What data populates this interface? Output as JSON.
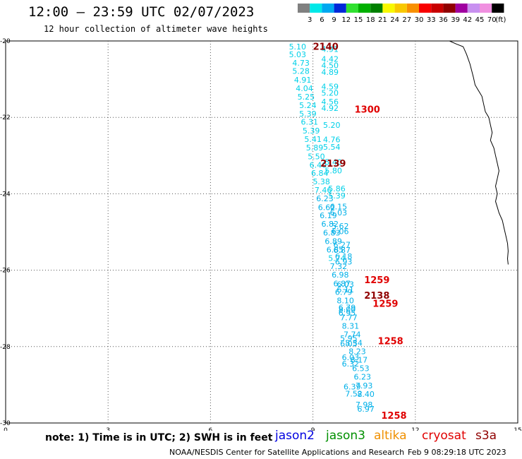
{
  "title": "12:00 – 23:59 UTC 02/07/2023",
  "subtitle": "12 hour collection of altimeter wave heights",
  "colorbar": {
    "unit": "(ft)",
    "bins": [
      {
        "label": "3",
        "color": "#808080"
      },
      {
        "label": "6",
        "color": "#00e8e8"
      },
      {
        "label": "9",
        "color": "#00a8f0"
      },
      {
        "label": "12",
        "color": "#0028d8"
      },
      {
        "label": "15",
        "color": "#30e030"
      },
      {
        "label": "18",
        "color": "#00b000"
      },
      {
        "label": "21",
        "color": "#008000"
      },
      {
        "label": "24",
        "color": "#f8f800"
      },
      {
        "label": "27",
        "color": "#f8c800"
      },
      {
        "label": "30",
        "color": "#f89000"
      },
      {
        "label": "33",
        "color": "#f80000"
      },
      {
        "label": "36",
        "color": "#c80000"
      },
      {
        "label": "39",
        "color": "#900000"
      },
      {
        "label": "42",
        "color": "#a000a0"
      },
      {
        "label": "45",
        "color": "#c890f0"
      },
      {
        "label": "70",
        "color": "#f090e0"
      },
      {
        "label": "",
        "color": "#000000"
      }
    ]
  },
  "note": "note: 1) Time is in UTC; 2) SWH is in feet",
  "legend": [
    {
      "label": "jason2",
      "color": "#0000e0"
    },
    {
      "label": "jason3",
      "color": "#009000"
    },
    {
      "label": "altika",
      "color": "#f09000"
    },
    {
      "label": "cryosat",
      "color": "#e00000"
    },
    {
      "label": "s3a",
      "color": "#900000"
    }
  ],
  "credit": "NOAA/NESDIS Center for Satellite Applications and Research",
  "timestamp": "Feb  9 08:29:18 UTC 2023",
  "chart_data": {
    "type": "scatter",
    "xlim": [
      0,
      15
    ],
    "ylim": [
      -30,
      -20
    ],
    "xticks": [
      "0",
      "3",
      "6",
      "9",
      "12",
      "15"
    ],
    "yticks": [
      "-20",
      "-22",
      "-24",
      "-26",
      "-28",
      "-30"
    ],
    "grid": true,
    "swh_labels": [
      {
        "x": 8.55,
        "y": -20.15,
        "text": "5.10",
        "color": "#00d0e8"
      },
      {
        "x": 8.55,
        "y": -20.35,
        "text": "5.03",
        "color": "#00d0e8"
      },
      {
        "x": 8.65,
        "y": -20.57,
        "text": "4.73",
        "color": "#00d0e8"
      },
      {
        "x": 8.65,
        "y": -20.79,
        "text": "5.28",
        "color": "#00d0e8"
      },
      {
        "x": 8.7,
        "y": -21.02,
        "text": "4.91",
        "color": "#00d0e8"
      },
      {
        "x": 8.75,
        "y": -21.24,
        "text": "4.04",
        "color": "#00d0e8"
      },
      {
        "x": 8.8,
        "y": -21.46,
        "text": "5.25",
        "color": "#00d0e8"
      },
      {
        "x": 8.85,
        "y": -21.68,
        "text": "5.24",
        "color": "#00d0e8"
      },
      {
        "x": 8.85,
        "y": -21.9,
        "text": "5.39",
        "color": "#00d0e8"
      },
      {
        "x": 8.9,
        "y": -22.12,
        "text": "6.31",
        "color": "#00d0e8"
      },
      {
        "x": 8.95,
        "y": -22.35,
        "text": "5.39",
        "color": "#00d0e8"
      },
      {
        "x": 9.0,
        "y": -22.57,
        "text": "5.41",
        "color": "#00d0e8"
      },
      {
        "x": 9.05,
        "y": -22.79,
        "text": "5.89",
        "color": "#00d0e8"
      },
      {
        "x": 9.1,
        "y": -23.02,
        "text": "5.50",
        "color": "#00d0e8"
      },
      {
        "x": 9.15,
        "y": -23.24,
        "text": "6.40",
        "color": "#00d0e8"
      },
      {
        "x": 9.2,
        "y": -23.46,
        "text": "6.84",
        "color": "#00d0e8"
      },
      {
        "x": 9.25,
        "y": -23.68,
        "text": "5.38",
        "color": "#00d0e8"
      },
      {
        "x": 9.3,
        "y": -23.9,
        "text": "7.46",
        "color": "#00d0e8"
      },
      {
        "x": 9.35,
        "y": -24.12,
        "text": "6.23",
        "color": "#00b0e8"
      },
      {
        "x": 9.4,
        "y": -24.35,
        "text": "6.62",
        "color": "#00b0e8"
      },
      {
        "x": 9.45,
        "y": -24.57,
        "text": "6.19",
        "color": "#00b0e8"
      },
      {
        "x": 9.5,
        "y": -24.79,
        "text": "6.82",
        "color": "#00b0e8"
      },
      {
        "x": 9.55,
        "y": -25.02,
        "text": "6.83",
        "color": "#00b0e8"
      },
      {
        "x": 9.6,
        "y": -25.24,
        "text": "6.89",
        "color": "#00b0e8"
      },
      {
        "x": 9.65,
        "y": -25.46,
        "text": "6.85",
        "color": "#00b0e8"
      },
      {
        "x": 9.7,
        "y": -25.68,
        "text": "5.74",
        "color": "#00d0e8"
      },
      {
        "x": 9.75,
        "y": -25.9,
        "text": "7.32",
        "color": "#00b0e8"
      },
      {
        "x": 9.8,
        "y": -26.12,
        "text": "6.98",
        "color": "#00b0e8"
      },
      {
        "x": 9.85,
        "y": -26.35,
        "text": "6.87",
        "color": "#00b0e8"
      },
      {
        "x": 9.9,
        "y": -26.57,
        "text": "6.79",
        "color": "#00b0e8"
      },
      {
        "x": 9.95,
        "y": -26.79,
        "text": "8.10",
        "color": "#00b0e8"
      },
      {
        "x": 10.0,
        "y": -27.02,
        "text": "8.00",
        "color": "#00b0e8"
      },
      {
        "x": 10.05,
        "y": -27.24,
        "text": "7.77",
        "color": "#00b0e8"
      },
      {
        "x": 10.1,
        "y": -27.46,
        "text": "8.31",
        "color": "#00b0e8"
      },
      {
        "x": 10.15,
        "y": -27.68,
        "text": "7.74",
        "color": "#00b0e8"
      },
      {
        "x": 10.2,
        "y": -27.9,
        "text": "8.34",
        "color": "#00b0e8"
      },
      {
        "x": 10.3,
        "y": -28.12,
        "text": "8.23",
        "color": "#00b0e8"
      },
      {
        "x": 10.35,
        "y": -28.35,
        "text": "8.17",
        "color": "#00b0e8"
      },
      {
        "x": 10.4,
        "y": -28.57,
        "text": "6.53",
        "color": "#00b0e8"
      },
      {
        "x": 10.45,
        "y": -28.79,
        "text": "6.23",
        "color": "#00b0e8"
      },
      {
        "x": 10.5,
        "y": -29.02,
        "text": "7.93",
        "color": "#00b0e8"
      },
      {
        "x": 10.55,
        "y": -29.24,
        "text": "8.40",
        "color": "#00b0e8"
      },
      {
        "x": 9.5,
        "y": -20.21,
        "text": "4.91",
        "color": "#00d0e8"
      },
      {
        "x": 9.5,
        "y": -20.47,
        "text": "4.42",
        "color": "#00d0e8"
      },
      {
        "x": 9.5,
        "y": -20.64,
        "text": "4.50",
        "color": "#00d0e8"
      },
      {
        "x": 9.5,
        "y": -20.81,
        "text": "4.89",
        "color": "#00d0e8"
      },
      {
        "x": 9.5,
        "y": -21.19,
        "text": "4.59",
        "color": "#00d0e8"
      },
      {
        "x": 9.5,
        "y": -21.36,
        "text": "5.20",
        "color": "#00d0e8"
      },
      {
        "x": 9.5,
        "y": -21.59,
        "text": "4.56",
        "color": "#00d0e8"
      },
      {
        "x": 9.5,
        "y": -21.76,
        "text": "4.92",
        "color": "#00d0e8"
      },
      {
        "x": 9.55,
        "y": -22.2,
        "text": "5.20",
        "color": "#00d0e8"
      },
      {
        "x": 9.55,
        "y": -22.58,
        "text": "4.76",
        "color": "#00d0e8"
      },
      {
        "x": 9.55,
        "y": -22.77,
        "text": "5.54",
        "color": "#00d0e8"
      },
      {
        "x": 9.6,
        "y": -23.17,
        "text": "5.40",
        "color": "#00d0e8"
      },
      {
        "x": 9.6,
        "y": -23.39,
        "text": "5.80",
        "color": "#00d0e8"
      },
      {
        "x": 9.7,
        "y": -23.86,
        "text": "5.86",
        "color": "#00d0e8"
      },
      {
        "x": 9.7,
        "y": -24.05,
        "text": "5.39",
        "color": "#00d0e8"
      },
      {
        "x": 9.75,
        "y": -24.33,
        "text": "6.15",
        "color": "#00b0e8"
      },
      {
        "x": 9.75,
        "y": -24.49,
        "text": "6.03",
        "color": "#00b0e8"
      },
      {
        "x": 9.8,
        "y": -24.84,
        "text": "5.62",
        "color": "#00b0e8"
      },
      {
        "x": 9.8,
        "y": -24.98,
        "text": "6.06",
        "color": "#00b0e8"
      },
      {
        "x": 9.85,
        "y": -25.33,
        "text": "6.27",
        "color": "#00b0e8"
      },
      {
        "x": 9.85,
        "y": -25.47,
        "text": "6.87",
        "color": "#00b0e8"
      },
      {
        "x": 9.9,
        "y": -25.64,
        "text": "6.18",
        "color": "#00b0e8"
      },
      {
        "x": 9.9,
        "y": -25.78,
        "text": "6.93",
        "color": "#00b0e8"
      },
      {
        "x": 9.95,
        "y": -26.37,
        "text": "6.03",
        "color": "#00b0e8"
      },
      {
        "x": 9.95,
        "y": -26.51,
        "text": "6.11",
        "color": "#00b0e8"
      },
      {
        "x": 10.0,
        "y": -26.98,
        "text": "6.79",
        "color": "#00b0e8"
      },
      {
        "x": 10.0,
        "y": -27.12,
        "text": "6.95",
        "color": "#00b0e8"
      },
      {
        "x": 10.05,
        "y": -27.78,
        "text": "5.95",
        "color": "#00b0e8"
      },
      {
        "x": 10.05,
        "y": -27.92,
        "text": "6.05",
        "color": "#00b0e8"
      },
      {
        "x": 10.1,
        "y": -28.28,
        "text": "6.03",
        "color": "#00b0e8"
      },
      {
        "x": 10.1,
        "y": -28.45,
        "text": "6.32",
        "color": "#00b0e8"
      },
      {
        "x": 10.15,
        "y": -29.05,
        "text": "6.39",
        "color": "#00b0e8"
      },
      {
        "x": 10.2,
        "y": -29.23,
        "text": "7.52",
        "color": "#00b0e8"
      },
      {
        "x": 10.5,
        "y": -29.52,
        "text": "7.98",
        "color": "#00b0e8"
      },
      {
        "x": 10.55,
        "y": -29.63,
        "text": "6.97",
        "color": "#00b0e8"
      }
    ],
    "time_labels": [
      {
        "x": 9.0,
        "y": -20.14,
        "text": "2140",
        "color": "#900000"
      },
      {
        "x": 10.22,
        "y": -21.78,
        "text": "1300",
        "color": "#e00000"
      },
      {
        "x": 9.22,
        "y": -23.2,
        "text": "2139",
        "color": "#900000"
      },
      {
        "x": 10.5,
        "y": -26.25,
        "text": "1259",
        "color": "#e00000"
      },
      {
        "x": 10.5,
        "y": -26.65,
        "text": "2138",
        "color": "#900000"
      },
      {
        "x": 10.75,
        "y": -26.87,
        "text": "1259",
        "color": "#e00000"
      },
      {
        "x": 10.9,
        "y": -27.85,
        "text": "1258",
        "color": "#e00000"
      },
      {
        "x": 11.0,
        "y": -29.8,
        "text": "1258",
        "color": "#e00000"
      }
    ],
    "coastline": [
      [
        13.0,
        -20.0
      ],
      [
        13.2,
        -20.08
      ],
      [
        13.4,
        -20.15
      ],
      [
        13.5,
        -20.35
      ],
      [
        13.6,
        -20.6
      ],
      [
        13.7,
        -20.95
      ],
      [
        13.75,
        -21.15
      ],
      [
        13.85,
        -21.3
      ],
      [
        13.95,
        -21.45
      ],
      [
        14.0,
        -21.65
      ],
      [
        14.05,
        -21.85
      ],
      [
        14.15,
        -22.0
      ],
      [
        14.2,
        -22.2
      ],
      [
        14.25,
        -22.4
      ],
      [
        14.2,
        -22.6
      ],
      [
        14.3,
        -22.8
      ],
      [
        14.35,
        -23.0
      ],
      [
        14.4,
        -23.2
      ],
      [
        14.45,
        -23.4
      ],
      [
        14.4,
        -23.6
      ],
      [
        14.35,
        -23.8
      ],
      [
        14.4,
        -24.0
      ],
      [
        14.35,
        -24.2
      ],
      [
        14.4,
        -24.35
      ],
      [
        14.45,
        -24.5
      ],
      [
        14.55,
        -24.7
      ],
      [
        14.6,
        -24.9
      ],
      [
        14.65,
        -25.1
      ],
      [
        14.7,
        -25.3
      ],
      [
        14.72,
        -25.5
      ],
      [
        14.7,
        -25.7
      ],
      [
        14.72,
        -25.85
      ]
    ]
  }
}
